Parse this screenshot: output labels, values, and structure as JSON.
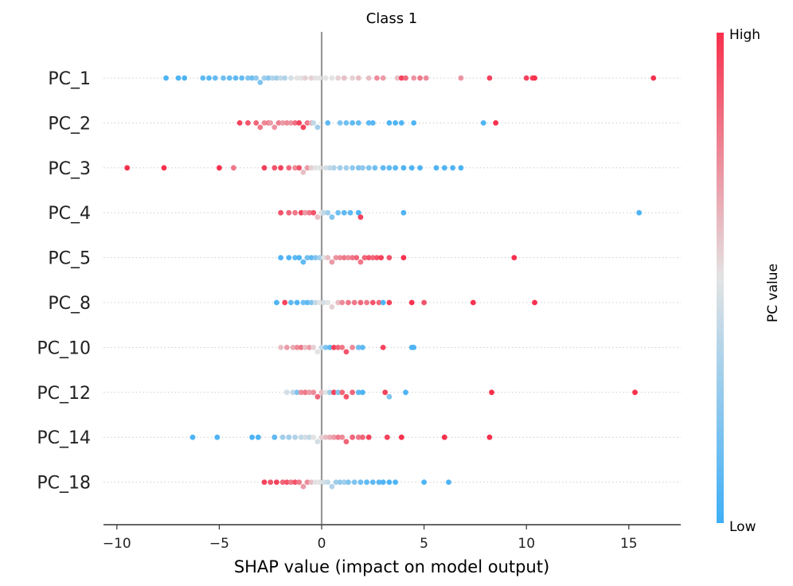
{
  "chart_data": {
    "type": "scatter",
    "title": "Class 1",
    "xlabel": "SHAP value (impact on model output)",
    "xlim": [
      -10.7,
      17.5
    ],
    "xticks": [
      -10,
      -5,
      0,
      5,
      10,
      15
    ],
    "xtick_labels": [
      "−10",
      "−5",
      "0",
      "5",
      "10",
      "15"
    ],
    "colorbar": {
      "label": "PC value",
      "high_label": "High",
      "low_label": "Low",
      "low_color": "#3eaff7",
      "mid_color": "#e3e3e3",
      "high_color": "#f7304d"
    },
    "features": [
      {
        "name": "PC_1",
        "points": [
          [
            -7.6,
            0.05
          ],
          [
            -7.0,
            0.05
          ],
          [
            -6.7,
            0.05
          ],
          [
            -5.8,
            0.1
          ],
          [
            -5.5,
            0.08
          ],
          [
            -5.2,
            0.12
          ],
          [
            -4.8,
            0.15
          ],
          [
            -4.5,
            0.12
          ],
          [
            -4.2,
            0.1
          ],
          [
            -3.9,
            0.12
          ],
          [
            -3.6,
            0.2
          ],
          [
            -3.4,
            0.15
          ],
          [
            -3.2,
            0.25
          ],
          [
            -3.0,
            0.2
          ],
          [
            -2.8,
            0.3
          ],
          [
            -2.6,
            0.22
          ],
          [
            -2.4,
            0.35
          ],
          [
            -2.2,
            0.3
          ],
          [
            -2.0,
            0.4
          ],
          [
            -1.8,
            0.35
          ],
          [
            -1.5,
            0.45
          ],
          [
            -1.2,
            0.5
          ],
          [
            -1.0,
            0.5
          ],
          [
            -0.8,
            0.55
          ],
          [
            -0.5,
            0.55
          ],
          [
            -0.3,
            0.5
          ],
          [
            -0.1,
            0.5
          ],
          [
            0.2,
            0.5
          ],
          [
            0.5,
            0.5
          ],
          [
            0.8,
            0.55
          ],
          [
            1.1,
            0.6
          ],
          [
            1.5,
            0.55
          ],
          [
            1.8,
            0.6
          ],
          [
            2.3,
            0.6
          ],
          [
            2.7,
            0.75
          ],
          [
            3.0,
            0.7
          ],
          [
            3.7,
            0.6
          ],
          [
            3.9,
            0.95
          ],
          [
            4.1,
            0.85
          ],
          [
            4.5,
            0.72
          ],
          [
            4.8,
            0.8
          ],
          [
            5.1,
            0.75
          ],
          [
            6.8,
            0.72
          ],
          [
            8.2,
            0.95
          ],
          [
            10.0,
            0.95
          ],
          [
            10.3,
            0.95
          ],
          [
            10.4,
            1.0
          ],
          [
            16.2,
            1.0
          ]
        ]
      },
      {
        "name": "PC_2",
        "points": [
          [
            -4.0,
            0.95
          ],
          [
            -3.6,
            0.9
          ],
          [
            -3.2,
            0.85
          ],
          [
            -3.0,
            0.8
          ],
          [
            -2.8,
            0.75
          ],
          [
            -2.6,
            0.8
          ],
          [
            -2.5,
            0.7
          ],
          [
            -2.3,
            0.72
          ],
          [
            -2.1,
            0.78
          ],
          [
            -1.9,
            0.7
          ],
          [
            -1.7,
            0.75
          ],
          [
            -1.5,
            0.72
          ],
          [
            -1.3,
            0.82
          ],
          [
            -1.1,
            0.95
          ],
          [
            -0.9,
            0.95
          ],
          [
            -0.7,
            0.8
          ],
          [
            -0.5,
            0.65
          ],
          [
            -0.4,
            0.4
          ],
          [
            -0.2,
            0.3
          ],
          [
            0.3,
            0.1
          ],
          [
            0.9,
            0.2
          ],
          [
            1.2,
            0.15
          ],
          [
            1.5,
            0.1
          ],
          [
            1.8,
            0.12
          ],
          [
            2.3,
            0.1
          ],
          [
            2.5,
            0.08
          ],
          [
            3.3,
            0.05
          ],
          [
            3.6,
            0.05
          ],
          [
            3.9,
            0.05
          ],
          [
            4.5,
            0.05
          ],
          [
            7.9,
            0.05
          ],
          [
            8.5,
            1.0
          ]
        ]
      },
      {
        "name": "PC_3",
        "points": [
          [
            -9.5,
            1.0
          ],
          [
            -7.7,
            1.0
          ],
          [
            -5.0,
            1.0
          ],
          [
            -4.3,
            0.8
          ],
          [
            -2.8,
            0.95
          ],
          [
            -2.3,
            0.9
          ],
          [
            -2.0,
            0.95
          ],
          [
            -1.6,
            0.85
          ],
          [
            -1.3,
            0.75
          ],
          [
            -1.1,
            0.9
          ],
          [
            -0.9,
            0.6
          ],
          [
            -0.7,
            0.7
          ],
          [
            -0.5,
            0.55
          ],
          [
            -0.3,
            0.5
          ],
          [
            -0.1,
            0.5
          ],
          [
            0.2,
            0.45
          ],
          [
            0.4,
            0.4
          ],
          [
            0.6,
            0.35
          ],
          [
            0.9,
            0.3
          ],
          [
            1.2,
            0.3
          ],
          [
            1.5,
            0.25
          ],
          [
            1.8,
            0.2
          ],
          [
            2.0,
            0.25
          ],
          [
            2.3,
            0.2
          ],
          [
            2.6,
            0.15
          ],
          [
            3.0,
            0.1
          ],
          [
            3.3,
            0.1
          ],
          [
            3.6,
            0.08
          ],
          [
            4.0,
            0.05
          ],
          [
            4.4,
            0.05
          ],
          [
            4.8,
            0.05
          ],
          [
            5.6,
            0.05
          ],
          [
            6.0,
            0.05
          ],
          [
            6.4,
            0.05
          ],
          [
            6.8,
            0.05
          ]
        ]
      },
      {
        "name": "PC_4",
        "points": [
          [
            -2.0,
            0.9
          ],
          [
            -1.6,
            0.85
          ],
          [
            -1.3,
            0.8
          ],
          [
            -1.0,
            0.95
          ],
          [
            -0.8,
            0.7
          ],
          [
            -0.6,
            0.8
          ],
          [
            -0.4,
            0.9
          ],
          [
            -0.2,
            0.6
          ],
          [
            0.0,
            0.5
          ],
          [
            0.1,
            0.4
          ],
          [
            0.3,
            0.3
          ],
          [
            0.5,
            0.2
          ],
          [
            0.8,
            0.15
          ],
          [
            1.1,
            0.1
          ],
          [
            1.4,
            0.1
          ],
          [
            1.8,
            0.05
          ],
          [
            1.9,
            0.95
          ],
          [
            4.0,
            0.05
          ],
          [
            15.5,
            0.05
          ]
        ]
      },
      {
        "name": "PC_5",
        "points": [
          [
            -2.0,
            0.05
          ],
          [
            -1.6,
            0.05
          ],
          [
            -1.3,
            0.1
          ],
          [
            -1.1,
            0.05
          ],
          [
            -0.9,
            0.1
          ],
          [
            -0.7,
            0.15
          ],
          [
            -0.5,
            0.1
          ],
          [
            -0.3,
            0.2
          ],
          [
            -0.1,
            0.3
          ],
          [
            0.1,
            0.5
          ],
          [
            0.3,
            0.6
          ],
          [
            0.5,
            0.7
          ],
          [
            0.7,
            0.72
          ],
          [
            0.9,
            0.75
          ],
          [
            1.1,
            0.8
          ],
          [
            1.3,
            0.75
          ],
          [
            1.5,
            0.8
          ],
          [
            1.7,
            0.85
          ],
          [
            1.9,
            0.8
          ],
          [
            2.1,
            0.85
          ],
          [
            2.3,
            0.9
          ],
          [
            2.5,
            0.85
          ],
          [
            2.7,
            0.9
          ],
          [
            2.9,
            0.95
          ],
          [
            3.3,
            0.9
          ],
          [
            4.0,
            1.0
          ],
          [
            9.4,
            1.0
          ]
        ]
      },
      {
        "name": "PC_8",
        "points": [
          [
            -2.2,
            0.05
          ],
          [
            -1.8,
            0.95
          ],
          [
            -1.5,
            0.1
          ],
          [
            -1.2,
            0.05
          ],
          [
            -0.9,
            0.15
          ],
          [
            -0.7,
            0.1
          ],
          [
            -0.5,
            0.2
          ],
          [
            -0.3,
            0.4
          ],
          [
            -0.1,
            0.5
          ],
          [
            0.1,
            0.45
          ],
          [
            0.3,
            0.5
          ],
          [
            0.5,
            0.55
          ],
          [
            0.8,
            0.6
          ],
          [
            1.0,
            0.75
          ],
          [
            1.3,
            0.8
          ],
          [
            1.6,
            0.8
          ],
          [
            1.9,
            0.85
          ],
          [
            2.2,
            0.8
          ],
          [
            2.5,
            0.9
          ],
          [
            2.8,
            0.85
          ],
          [
            3.0,
            0.05
          ],
          [
            3.3,
            0.95
          ],
          [
            4.4,
            1.0
          ],
          [
            5.0,
            0.9
          ],
          [
            7.4,
            1.0
          ],
          [
            10.4,
            1.0
          ]
        ]
      },
      {
        "name": "PC_10",
        "points": [
          [
            -2.0,
            0.6
          ],
          [
            -1.7,
            0.7
          ],
          [
            -1.4,
            0.65
          ],
          [
            -1.2,
            0.75
          ],
          [
            -1.0,
            0.8
          ],
          [
            -0.8,
            0.6
          ],
          [
            -0.6,
            0.7
          ],
          [
            -0.4,
            0.55
          ],
          [
            -0.2,
            0.5
          ],
          [
            0.0,
            0.4
          ],
          [
            0.2,
            0.2
          ],
          [
            0.4,
            0.1
          ],
          [
            0.6,
            0.95
          ],
          [
            0.8,
            0.85
          ],
          [
            1.0,
            0.8
          ],
          [
            1.2,
            0.9
          ],
          [
            1.5,
            0.75
          ],
          [
            1.8,
            0.15
          ],
          [
            2.0,
            0.1
          ],
          [
            3.0,
            0.95
          ],
          [
            4.4,
            0.05
          ],
          [
            4.5,
            0.05
          ]
        ]
      },
      {
        "name": "PC_12",
        "points": [
          [
            -1.7,
            0.45
          ],
          [
            -1.4,
            0.4
          ],
          [
            -1.2,
            0.2
          ],
          [
            -1.0,
            0.75
          ],
          [
            -0.8,
            0.8
          ],
          [
            -0.6,
            0.7
          ],
          [
            -0.4,
            0.75
          ],
          [
            -0.2,
            0.85
          ],
          [
            0.0,
            0.6
          ],
          [
            0.2,
            0.5
          ],
          [
            0.4,
            0.3
          ],
          [
            0.6,
            0.95
          ],
          [
            0.8,
            0.2
          ],
          [
            1.0,
            0.85
          ],
          [
            1.2,
            0.9
          ],
          [
            1.5,
            0.85
          ],
          [
            1.8,
            0.1
          ],
          [
            2.0,
            0.05
          ],
          [
            3.1,
            0.95
          ],
          [
            3.3,
            0.2
          ],
          [
            4.1,
            0.05
          ],
          [
            8.3,
            1.0
          ],
          [
            15.3,
            1.0
          ]
        ]
      },
      {
        "name": "PC_14",
        "points": [
          [
            -6.3,
            0.05
          ],
          [
            -5.1,
            0.05
          ],
          [
            -3.4,
            0.05
          ],
          [
            -3.1,
            0.05
          ],
          [
            -2.3,
            0.1
          ],
          [
            -1.9,
            0.3
          ],
          [
            -1.6,
            0.3
          ],
          [
            -1.3,
            0.35
          ],
          [
            -1.0,
            0.4
          ],
          [
            -0.8,
            0.45
          ],
          [
            -0.6,
            0.4
          ],
          [
            -0.4,
            0.5
          ],
          [
            -0.2,
            0.45
          ],
          [
            0.0,
            0.55
          ],
          [
            0.2,
            0.6
          ],
          [
            0.4,
            0.65
          ],
          [
            0.6,
            0.7
          ],
          [
            0.8,
            0.8
          ],
          [
            1.0,
            0.75
          ],
          [
            1.2,
            0.85
          ],
          [
            1.5,
            0.85
          ],
          [
            1.8,
            0.8
          ],
          [
            2.0,
            0.85
          ],
          [
            2.3,
            0.95
          ],
          [
            3.2,
            0.95
          ],
          [
            3.9,
            1.0
          ],
          [
            6.0,
            1.0
          ],
          [
            8.2,
            1.0
          ]
        ]
      },
      {
        "name": "PC_18",
        "points": [
          [
            -2.8,
            0.95
          ],
          [
            -2.5,
            0.9
          ],
          [
            -2.2,
            0.95
          ],
          [
            -1.9,
            0.85
          ],
          [
            -1.7,
            0.9
          ],
          [
            -1.5,
            0.8
          ],
          [
            -1.3,
            0.9
          ],
          [
            -1.1,
            0.8
          ],
          [
            -0.9,
            0.7
          ],
          [
            -0.7,
            0.75
          ],
          [
            -0.5,
            0.6
          ],
          [
            -0.3,
            0.5
          ],
          [
            -0.1,
            0.5
          ],
          [
            0.1,
            0.45
          ],
          [
            0.3,
            0.4
          ],
          [
            0.5,
            0.35
          ],
          [
            0.7,
            0.3
          ],
          [
            0.9,
            0.25
          ],
          [
            1.1,
            0.3
          ],
          [
            1.3,
            0.2
          ],
          [
            1.6,
            0.2
          ],
          [
            1.9,
            0.15
          ],
          [
            2.2,
            0.1
          ],
          [
            2.5,
            0.1
          ],
          [
            2.8,
            0.08
          ],
          [
            3.0,
            0.05
          ],
          [
            3.3,
            0.05
          ],
          [
            3.6,
            0.05
          ],
          [
            5.0,
            0.05
          ],
          [
            6.2,
            0.05
          ]
        ]
      }
    ]
  }
}
